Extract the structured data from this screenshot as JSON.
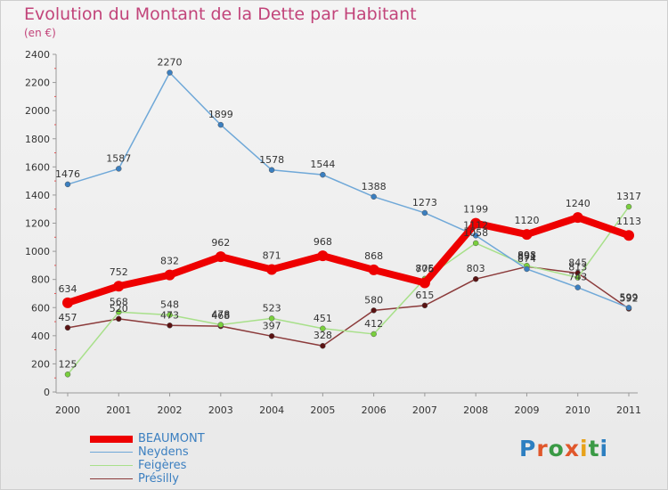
{
  "header": {
    "title": "Evolution du Montant de la Dette par Habitant",
    "subtitle": "(en €)"
  },
  "logo": {
    "text": "Proxiti",
    "letter_colors": [
      "#2d7fc1",
      "#e0572b",
      "#3a9a45",
      "#e0572b",
      "#e8a21a",
      "#3a9a45",
      "#2d7fc1"
    ]
  },
  "colors": {
    "axis": "#999999",
    "grid_tick": "#e05555",
    "text": "#333333",
    "title": "#c2447a"
  },
  "chart_data": {
    "type": "line",
    "title": "Evolution du Montant de la Dette par Habitant",
    "ylabel": "(en €)",
    "xlabel": "",
    "x": [
      "2000",
      "2001",
      "2002",
      "2003",
      "2004",
      "2005",
      "2006",
      "2007",
      "2008",
      "2009",
      "2010",
      "2011"
    ],
    "ylim": [
      0,
      2400
    ],
    "yticks": [
      0,
      200,
      400,
      600,
      800,
      1000,
      1200,
      1400,
      1600,
      1800,
      2000,
      2200,
      2400
    ],
    "grid": false,
    "legend_position": "bottom-left",
    "series": [
      {
        "name": "BEAUMONT",
        "color": "#ee0000",
        "marker": "#ee0000",
        "width": 8,
        "radius": 6,
        "values": [
          634,
          752,
          832,
          962,
          871,
          968,
          868,
          776,
          1199,
          1120,
          1240,
          1113
        ]
      },
      {
        "name": "Neydens",
        "color": "#6fa8d8",
        "marker": "#3b7fc0",
        "width": 1.5,
        "radius": 3,
        "values": [
          1476,
          1587,
          2270,
          1899,
          1578,
          1544,
          1388,
          1273,
          1112,
          874,
          743,
          599
        ]
      },
      {
        "name": "Feigères",
        "color": "#a8e08a",
        "marker": "#79cf3d",
        "width": 1.5,
        "radius": 3,
        "values": [
          125,
          568,
          548,
          478,
          523,
          451,
          412,
          805,
          1058,
          898,
          813,
          1317
        ]
      },
      {
        "name": "Présilly",
        "color": "#8b3a3a",
        "marker": "#5a1212",
        "width": 1.5,
        "radius": 3,
        "values": [
          457,
          520,
          473,
          468,
          397,
          328,
          580,
          615,
          803,
          891,
          845,
          592
        ]
      }
    ]
  }
}
